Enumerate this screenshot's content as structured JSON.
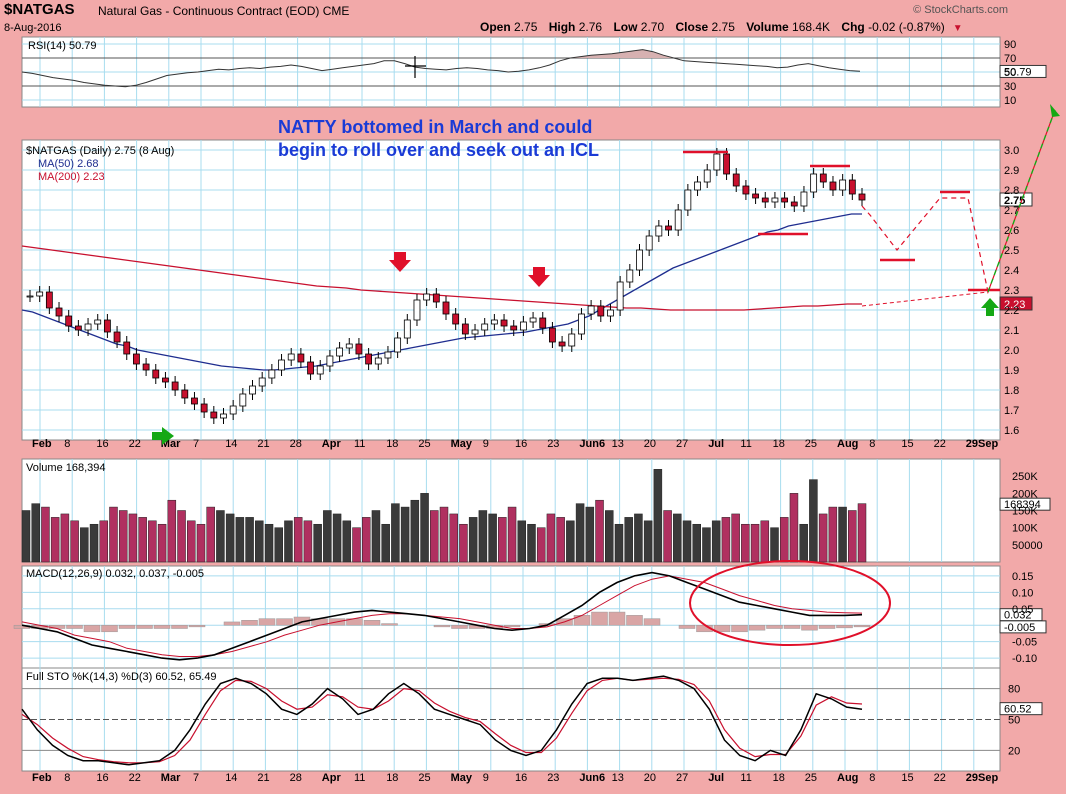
{
  "header": {
    "symbol": "$NATGAS",
    "description": "Natural Gas - Continuous Contract (EOD)",
    "exchange": "CME",
    "date": "8-Aug-2016",
    "brand": "© StockCharts.com",
    "open_label": "Open",
    "open": "2.75",
    "high_label": "High",
    "high": "2.76",
    "low_label": "Low",
    "low": "2.70",
    "close_label": "Close",
    "close": "2.75",
    "volume_label": "Volume",
    "volume": "168.4K",
    "chg_label": "Chg",
    "chg": "-0.02 (-0.87%)"
  },
  "annotation": {
    "line1": "NATTY bottomed in March and could",
    "line2": "begin to roll over and seek out an ICL"
  },
  "colors": {
    "background": "#f2a9a9",
    "panel": "#ffffff",
    "grid": "#a8dcef",
    "up_candle": "#ffffff",
    "down_candle": "#c8102e",
    "ma50": "#1f2d8f",
    "ma200": "#c8102e",
    "vol_down": "#b03060",
    "vol_up": "#3a3a3a",
    "annotation_text": "#1a3bd6",
    "arrow_down": "#e0102a",
    "arrow_up": "#14a814"
  },
  "chart_data": [
    {
      "type": "line",
      "title": "RSI(14) 50.79",
      "ylim": [
        0,
        100
      ],
      "ticks": [
        90,
        70,
        50,
        30,
        10
      ],
      "tick_labels": [
        "90",
        "70",
        "50",
        "30",
        "10"
      ],
      "reference_lines": [
        70,
        30
      ],
      "last_value_label": "50.79",
      "series": [
        {
          "name": "RSI(14)",
          "values": [
            50,
            48,
            45,
            42,
            40,
            38,
            35,
            33,
            31,
            30,
            29,
            31,
            35,
            40,
            45,
            47,
            49,
            50,
            52,
            54,
            53,
            55,
            56,
            55,
            57,
            58,
            60,
            58,
            55,
            52,
            54,
            56,
            58,
            60,
            62,
            66,
            66,
            62,
            57,
            55,
            54,
            53,
            55,
            56,
            55,
            53,
            52,
            50,
            51,
            53,
            56,
            60,
            66,
            70,
            72,
            74,
            75,
            76,
            78,
            80,
            82,
            79,
            74,
            70,
            66,
            65,
            64,
            63,
            62,
            61,
            60,
            59,
            58,
            56,
            57,
            60,
            62,
            59,
            56,
            54,
            52,
            51
          ]
        }
      ]
    },
    {
      "type": "candlestick",
      "title": "$NATGAS (Daily) 2.75 (8 Aug)",
      "ylim": [
        1.55,
        3.05
      ],
      "ticks": [
        3.0,
        2.9,
        2.8,
        2.7,
        2.6,
        2.5,
        2.4,
        2.3,
        2.2,
        2.1,
        2.0,
        1.9,
        1.8,
        1.7,
        1.6
      ],
      "tick_labels": [
        "3.0",
        "2.9",
        "2.8",
        "2.7",
        "2.6",
        "2.5",
        "2.4",
        "2.3",
        "2.2",
        "2.1",
        "2.0",
        "1.9",
        "1.8",
        "1.7",
        "1.6"
      ],
      "x_ticks": [
        "Feb",
        "8",
        "16",
        "22",
        "Mar",
        "7",
        "14",
        "21",
        "28",
        "Apr",
        "11",
        "18",
        "25",
        "May",
        "9",
        "16",
        "23",
        "Jun6",
        "13",
        "20",
        "27",
        "Jul",
        "11",
        "18",
        "25",
        "Aug",
        "8",
        "15",
        "22",
        "29Sep"
      ],
      "close": [
        2.27,
        2.29,
        2.21,
        2.17,
        2.12,
        2.1,
        2.13,
        2.15,
        2.09,
        2.04,
        1.98,
        1.93,
        1.9,
        1.86,
        1.84,
        1.8,
        1.76,
        1.73,
        1.69,
        1.66,
        1.68,
        1.72,
        1.78,
        1.82,
        1.86,
        1.9,
        1.95,
        1.98,
        1.94,
        1.88,
        1.92,
        1.97,
        2.01,
        2.03,
        1.98,
        1.93,
        1.96,
        1.99,
        2.06,
        2.15,
        2.25,
        2.28,
        2.24,
        2.18,
        2.13,
        2.08,
        2.1,
        2.13,
        2.15,
        2.12,
        2.1,
        2.14,
        2.16,
        2.11,
        2.04,
        2.02,
        2.08,
        2.18,
        2.22,
        2.17,
        2.2,
        2.34,
        2.4,
        2.5,
        2.57,
        2.62,
        2.6,
        2.7,
        2.8,
        2.84,
        2.9,
        2.98,
        2.88,
        2.82,
        2.78,
        2.76,
        2.74,
        2.76,
        2.74,
        2.72,
        2.79,
        2.88,
        2.84,
        2.8,
        2.85,
        2.78,
        2.75
      ],
      "ma": [
        {
          "name": "MA(50)",
          "value_label": "2.68",
          "values": [
            2.2,
            2.19,
            2.17,
            2.15,
            2.13,
            2.11,
            2.09,
            2.07,
            2.05,
            2.03,
            2.02,
            2.0,
            1.99,
            1.98,
            1.97,
            1.96,
            1.95,
            1.94,
            1.93,
            1.92,
            1.915,
            1.91,
            1.905,
            1.9,
            1.9,
            1.905,
            1.91,
            1.915,
            1.92,
            1.93,
            1.94,
            1.95,
            1.96,
            1.97,
            1.98,
            1.99,
            2.0,
            2.01,
            2.02,
            2.03,
            2.04,
            2.05,
            2.06,
            2.065,
            2.07,
            2.075,
            2.08,
            2.085,
            2.09,
            2.1,
            2.11,
            2.12,
            2.13,
            2.15,
            2.17,
            2.2,
            2.23,
            2.26,
            2.29,
            2.32,
            2.35,
            2.38,
            2.41,
            2.43,
            2.45,
            2.47,
            2.49,
            2.51,
            2.53,
            2.55,
            2.57,
            2.59,
            2.6,
            2.62,
            2.63,
            2.64,
            2.65,
            2.66,
            2.67,
            2.68,
            2.68
          ]
        },
        {
          "name": "MA(200)",
          "value_label": "2.23",
          "values": [
            2.52,
            2.51,
            2.5,
            2.49,
            2.48,
            2.47,
            2.46,
            2.45,
            2.44,
            2.43,
            2.42,
            2.41,
            2.4,
            2.39,
            2.38,
            2.37,
            2.36,
            2.35,
            2.34,
            2.33,
            2.32,
            2.315,
            2.31,
            2.3,
            2.295,
            2.29,
            2.285,
            2.28,
            2.275,
            2.27,
            2.265,
            2.26,
            2.255,
            2.25,
            2.245,
            2.24,
            2.235,
            2.23,
            2.225,
            2.22,
            2.215,
            2.21,
            2.21,
            2.205,
            2.2,
            2.2,
            2.2,
            2.2,
            2.2,
            2.2,
            2.205,
            2.21,
            2.215,
            2.22,
            2.22,
            2.225,
            2.23,
            2.23
          ]
        }
      ],
      "annotations": [
        {
          "kind": "forecast-path",
          "points": [
            [
              86,
              2.72
            ],
            [
              90,
              2.46
            ],
            [
              96,
              2.75
            ],
            [
              100,
              2.3
            ],
            [
              104,
              2.78
            ]
          ]
        },
        {
          "kind": "low-target-line",
          "value": 2.3
        },
        {
          "kind": "price-label",
          "text": "2.75"
        },
        {
          "kind": "price-label",
          "text": "2.23"
        }
      ]
    },
    {
      "type": "bar",
      "title": "Volume 168,394",
      "ylim": [
        0,
        300000
      ],
      "ticks": [
        250000,
        200000,
        150000,
        100000,
        50000
      ],
      "tick_labels": [
        "250K",
        "200K",
        "150K",
        "100K",
        "50000"
      ],
      "last_value_label": "168394",
      "values": [
        150,
        170,
        160,
        130,
        140,
        120,
        100,
        110,
        120,
        160,
        150,
        140,
        130,
        120,
        110,
        180,
        150,
        120,
        110,
        160,
        150,
        140,
        130,
        130,
        120,
        110,
        100,
        120,
        130,
        120,
        110,
        150,
        140,
        120,
        100,
        130,
        150,
        110,
        170,
        160,
        180,
        200,
        150,
        160,
        140,
        110,
        130,
        150,
        140,
        130,
        160,
        120,
        110,
        100,
        140,
        130,
        120,
        170,
        160,
        180,
        150,
        110,
        130,
        140,
        120,
        270,
        150,
        140,
        120,
        110,
        100,
        120,
        130,
        140,
        110,
        110,
        120,
        100,
        130,
        200,
        110,
        240,
        140,
        160,
        160,
        150,
        170
      ]
    },
    {
      "type": "line",
      "title": "MACD(12,26,9) 0.032, 0.037, -0.005",
      "ylim": [
        -0.13,
        0.18
      ],
      "ticks": [
        0.15,
        0.1,
        0.05,
        0.0,
        -0.05,
        -0.1
      ],
      "tick_labels": [
        "0.15",
        "0.10",
        "0.05",
        "",
        "-0.05",
        "-0.10"
      ],
      "last_value_labels": [
        "0.032",
        "-0.005"
      ],
      "series": [
        {
          "name": "MACD",
          "values": [
            0.0,
            -0.01,
            -0.02,
            -0.04,
            -0.06,
            -0.07,
            -0.08,
            -0.09,
            -0.1,
            -0.105,
            -0.1,
            -0.09,
            -0.07,
            -0.05,
            -0.03,
            -0.01,
            0.01,
            0.02,
            0.03,
            0.04,
            0.045,
            0.04,
            0.035,
            0.03,
            0.02,
            0.01,
            0.0,
            -0.01,
            -0.015,
            -0.01,
            0.0,
            0.03,
            0.06,
            0.1,
            0.13,
            0.15,
            0.16,
            0.15,
            0.13,
            0.11,
            0.09,
            0.07,
            0.06,
            0.05,
            0.04,
            0.03,
            0.03,
            0.03,
            0.032
          ]
        },
        {
          "name": "Signal",
          "values": [
            0.01,
            0.0,
            -0.01,
            -0.03,
            -0.04,
            -0.05,
            -0.07,
            -0.08,
            -0.09,
            -0.095,
            -0.095,
            -0.09,
            -0.08,
            -0.065,
            -0.05,
            -0.03,
            -0.015,
            0.0,
            0.01,
            0.02,
            0.03,
            0.035,
            0.035,
            0.03,
            0.025,
            0.02,
            0.01,
            0.0,
            -0.01,
            -0.01,
            -0.005,
            0.01,
            0.03,
            0.06,
            0.09,
            0.12,
            0.14,
            0.15,
            0.14,
            0.13,
            0.11,
            0.09,
            0.075,
            0.06,
            0.05,
            0.045,
            0.04,
            0.038,
            0.037
          ]
        }
      ],
      "histogram": [
        -0.01,
        -0.01,
        -0.01,
        -0.01,
        -0.02,
        -0.02,
        -0.01,
        -0.01,
        -0.01,
        -0.01,
        -0.005,
        0.0,
        0.01,
        0.015,
        0.02,
        0.02,
        0.025,
        0.02,
        0.02,
        0.02,
        0.015,
        0.005,
        0.0,
        0.0,
        -0.005,
        -0.01,
        -0.01,
        -0.01,
        -0.005,
        0.0,
        0.005,
        0.02,
        0.03,
        0.04,
        0.04,
        0.03,
        0.02,
        0.0,
        -0.01,
        -0.02,
        -0.02,
        -0.02,
        -0.015,
        -0.01,
        -0.01,
        -0.015,
        -0.01,
        -0.008,
        -0.005
      ]
    },
    {
      "type": "line",
      "title": "Full STO %K(14,3) %D(3) 60.52, 65.49",
      "ylim": [
        0,
        100
      ],
      "ticks": [
        80,
        50,
        20
      ],
      "tick_labels": [
        "80",
        "50",
        "20"
      ],
      "reference_lines": [
        80,
        50,
        20
      ],
      "last_value_label": "60.52",
      "series": [
        {
          "name": "%K(14,3)",
          "values": [
            60,
            40,
            25,
            15,
            10,
            10,
            8,
            6,
            8,
            10,
            20,
            40,
            65,
            85,
            90,
            85,
            75,
            60,
            55,
            65,
            80,
            70,
            55,
            60,
            75,
            85,
            75,
            60,
            55,
            50,
            45,
            30,
            20,
            15,
            20,
            40,
            65,
            85,
            90,
            90,
            88,
            90,
            92,
            88,
            80,
            60,
            30,
            15,
            10,
            20,
            15,
            40,
            75,
            70,
            62,
            60
          ]
        },
        {
          "name": "%D(3)",
          "values": [
            55,
            45,
            32,
            22,
            14,
            11,
            9,
            8,
            8,
            9,
            15,
            30,
            55,
            78,
            88,
            87,
            80,
            68,
            60,
            62,
            74,
            72,
            62,
            60,
            68,
            80,
            78,
            66,
            58,
            52,
            48,
            36,
            25,
            18,
            18,
            32,
            56,
            78,
            88,
            90,
            88,
            89,
            90,
            89,
            84,
            68,
            40,
            22,
            14,
            16,
            16,
            34,
            64,
            72,
            66,
            65
          ]
        }
      ]
    }
  ]
}
